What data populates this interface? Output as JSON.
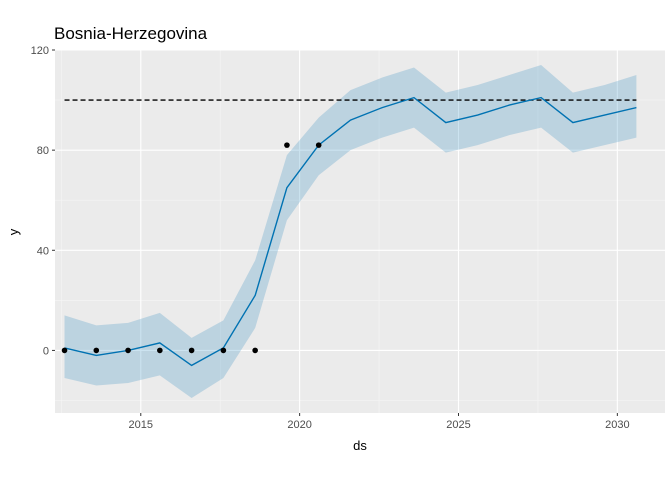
{
  "chart_data": {
    "type": "line",
    "title": "Bosnia-Herzegovina",
    "xlabel": "ds",
    "ylabel": "y",
    "xlim": [
      2012.3,
      2031.5
    ],
    "ylim": [
      -25,
      120
    ],
    "xticks": [
      2015,
      2020,
      2025,
      2030
    ],
    "yticks": [
      0,
      40,
      80,
      120
    ],
    "grid": true,
    "cap": 100,
    "series": [
      {
        "kind": "observed-points",
        "x": [
          2012.6,
          2013.6,
          2014.6,
          2015.6,
          2016.6,
          2017.6,
          2018.6,
          2019.6,
          2020.6
        ],
        "y": [
          0,
          0,
          0,
          0,
          0,
          0,
          0,
          82,
          82
        ]
      },
      {
        "kind": "forecast-line",
        "color": "#0072b2",
        "x": [
          2012.6,
          2013.6,
          2014.6,
          2015.6,
          2016.6,
          2017.6,
          2018.6,
          2019.6,
          2020.6,
          2021.6,
          2022.6,
          2023.6,
          2024.6,
          2025.6,
          2026.6,
          2027.6,
          2028.6,
          2029.6,
          2030.6
        ],
        "y": [
          1,
          -2,
          0,
          3,
          -6,
          1,
          22,
          65,
          82,
          92,
          97,
          101,
          91,
          94,
          98,
          101,
          91,
          94,
          97
        ],
        "lower": [
          -11,
          -14,
          -13,
          -10,
          -19,
          -11,
          9,
          52,
          70,
          80,
          85,
          89,
          79,
          82,
          86,
          89,
          79,
          82,
          85
        ],
        "upper": [
          14,
          10,
          11,
          15,
          5,
          12,
          36,
          78,
          93,
          104,
          109,
          113,
          103,
          106,
          110,
          114,
          103,
          106,
          110
        ]
      }
    ],
    "band_color": "#0072b2"
  }
}
